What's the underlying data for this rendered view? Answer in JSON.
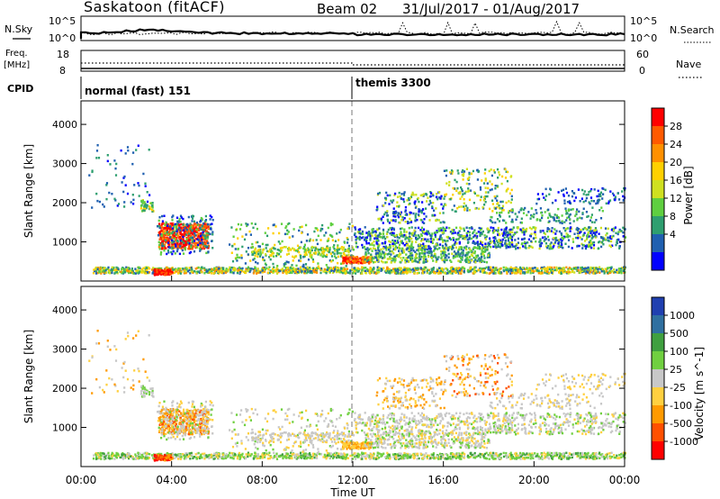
{
  "header": {
    "station": "Saskatoon (fitACF)",
    "beam": "Beam 02",
    "date_range": "31/Jul/2017 - 01/Aug/2017"
  },
  "strip": {
    "nsky_label": "N.Sky",
    "nsky_top": "10^5",
    "nsky_bottom": "10^0",
    "nsearch_label": "N.Search",
    "freq_label_1": "Freq.",
    "freq_label_2": "[MHz]",
    "freq_top": "18",
    "freq_bottom": "8",
    "nave_label": "Nave",
    "nave_top": "60",
    "nave_bottom": "0",
    "cpid_label": "CPID",
    "cpid_modes": [
      "normal (fast) 151",
      "themis 3300"
    ]
  },
  "chart_data": [
    {
      "type": "heatmap",
      "name": "power",
      "ylabel": "Slant Range [km]",
      "yticks": [
        "4000",
        "3000",
        "2000",
        "1000"
      ],
      "colorbar_label": "Power [dB]",
      "colorbar_ticks": [
        "28",
        "24",
        "20",
        "16",
        "12",
        "8",
        "4"
      ],
      "colorbar_colors": [
        "#ff0000",
        "#ff5a00",
        "#ff9000",
        "#ffd000",
        "#cfe020",
        "#5fcf40",
        "#2f9f70",
        "#2060b0",
        "#0000ff"
      ]
    },
    {
      "type": "heatmap",
      "name": "velocity",
      "ylabel": "Slant Range [km]",
      "yticks": [
        "4000",
        "3000",
        "2000",
        "1000"
      ],
      "colorbar_label": "Velocity [m s^-1]",
      "colorbar_ticks": [
        "1000",
        "500",
        "100",
        "25",
        "-25",
        "-100",
        "-500",
        "-1000"
      ],
      "colorbar_colors": [
        "#2040b0",
        "#3070a0",
        "#40a040",
        "#70d040",
        "#c8c8c8",
        "#ffd040",
        "#ff9a00",
        "#ff5000",
        "#ff0000"
      ]
    }
  ],
  "xaxis": {
    "label": "Time UT",
    "ticks": [
      "00:00",
      "04:00",
      "08:00",
      "12:00",
      "16:00",
      "20:00",
      "00:00"
    ]
  }
}
